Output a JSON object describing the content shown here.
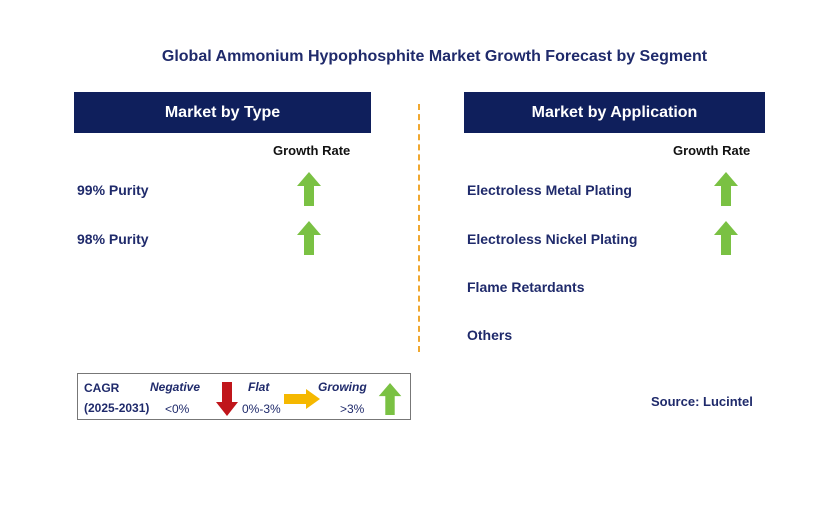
{
  "title": "Global Ammonium Hypophosphite Market Growth Forecast by Segment",
  "left": {
    "header": "Market by Type",
    "growth_label": "Growth Rate",
    "items": [
      {
        "label": "99% Purity",
        "trend": "growing"
      },
      {
        "label": "98% Purity",
        "trend": "growing"
      }
    ]
  },
  "right": {
    "header": "Market by Application",
    "growth_label": "Growth Rate",
    "items": [
      {
        "label": "Electroless Metal Plating",
        "trend": "growing"
      },
      {
        "label": "Electroless Nickel Plating",
        "trend": "growing"
      },
      {
        "label": "Flame Retardants",
        "trend": ""
      },
      {
        "label": "Others",
        "trend": ""
      }
    ]
  },
  "legend": {
    "cagr": "CAGR",
    "period": "(2025-2031)",
    "negative": {
      "label": "Negative",
      "range": "<0%"
    },
    "flat": {
      "label": "Flat",
      "range": "0%-3%"
    },
    "growing": {
      "label": "Growing",
      "range": ">3%"
    }
  },
  "source": "Source: Lucintel",
  "colors": {
    "header_bg": "#0f1f5c",
    "growing": "#7ac143",
    "flat": "#f5b800",
    "negative": "#c0161b",
    "divider": "#f0a830"
  }
}
